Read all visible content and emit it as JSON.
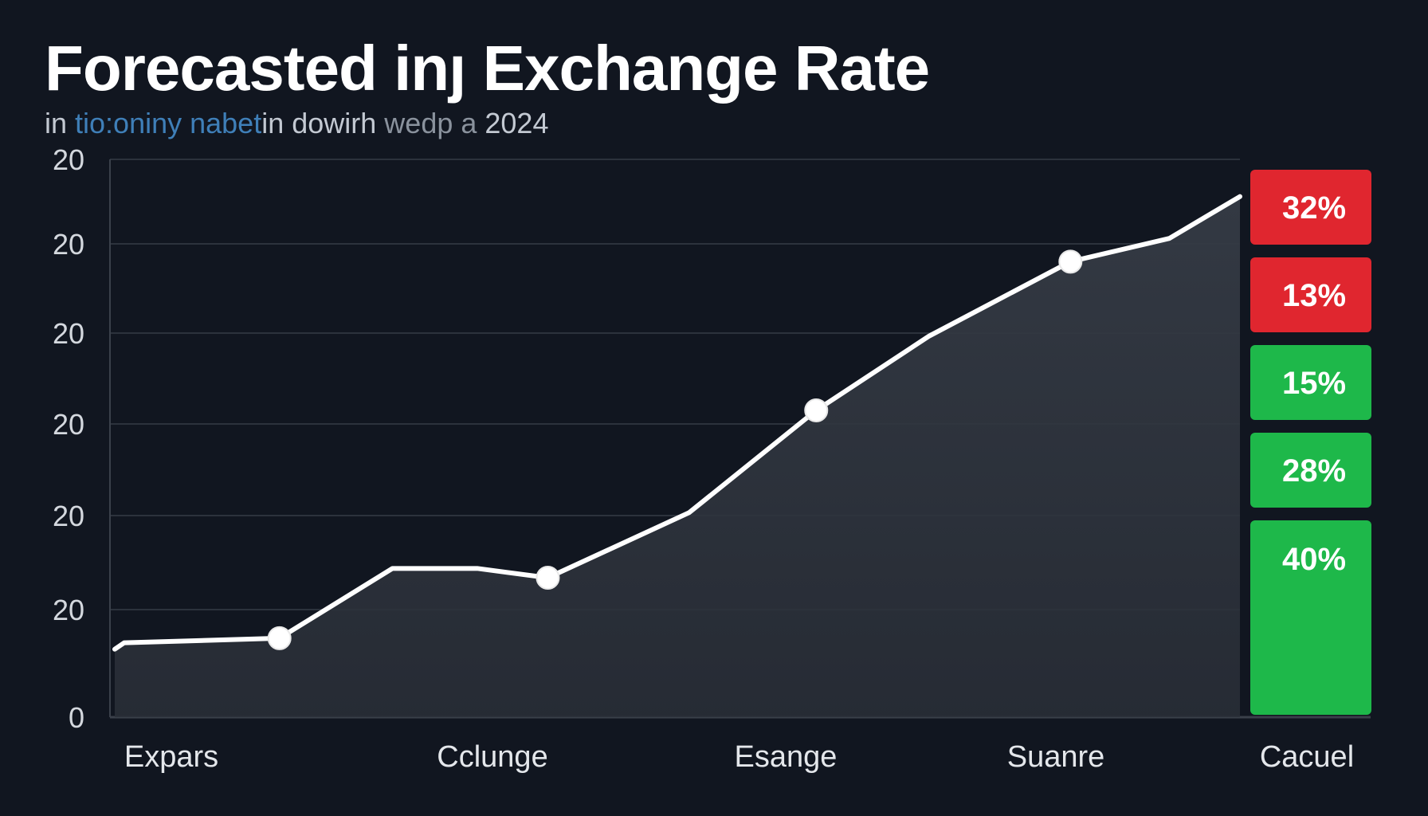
{
  "header": {
    "title": "Forecasted  inȷ Exchange Rate",
    "subtitle_lead": "in ",
    "subtitle_blue": "tio:oniny nabet",
    "subtitle_mid": "in dowirh ",
    "subtitle_dim": "wedp a",
    "subtitle_tail": " 2024"
  },
  "colors": {
    "background": "#111620",
    "line": "#ffffff",
    "area": "#2a2f38",
    "grid": "#2c323c",
    "red": "#e0262f",
    "green": "#1eb84a"
  },
  "chart_data": {
    "type": "line",
    "title": "Forecasted  inȷ Exchange Rate",
    "subtitle": "in tio:oniny nabet in dowirh wedp a 2024",
    "y_tick_labels": [
      "0",
      "20",
      "20",
      "20",
      "20",
      "20",
      "20"
    ],
    "ylim": [
      0,
      6
    ],
    "categories": [
      "Expars",
      "Cclunge",
      "Esange",
      "Suanre",
      "Cacuel"
    ],
    "x": [
      0.05,
      0.6,
      1.0,
      1.3,
      1.55,
      2.05,
      2.5,
      2.9,
      3.4,
      3.75,
      4.0
    ],
    "values": [
      0.8,
      0.85,
      1.6,
      1.6,
      1.5,
      2.2,
      3.3,
      4.1,
      4.9,
      5.15,
      5.6
    ],
    "markers_at_index": [
      1,
      4,
      6,
      8
    ],
    "grid": true,
    "badges": [
      {
        "label": "32%",
        "status": "red"
      },
      {
        "label": "13%",
        "status": "red"
      },
      {
        "label": "15%",
        "status": "green"
      },
      {
        "label": "28%",
        "status": "green"
      },
      {
        "label": "40%",
        "status": "green"
      }
    ]
  }
}
